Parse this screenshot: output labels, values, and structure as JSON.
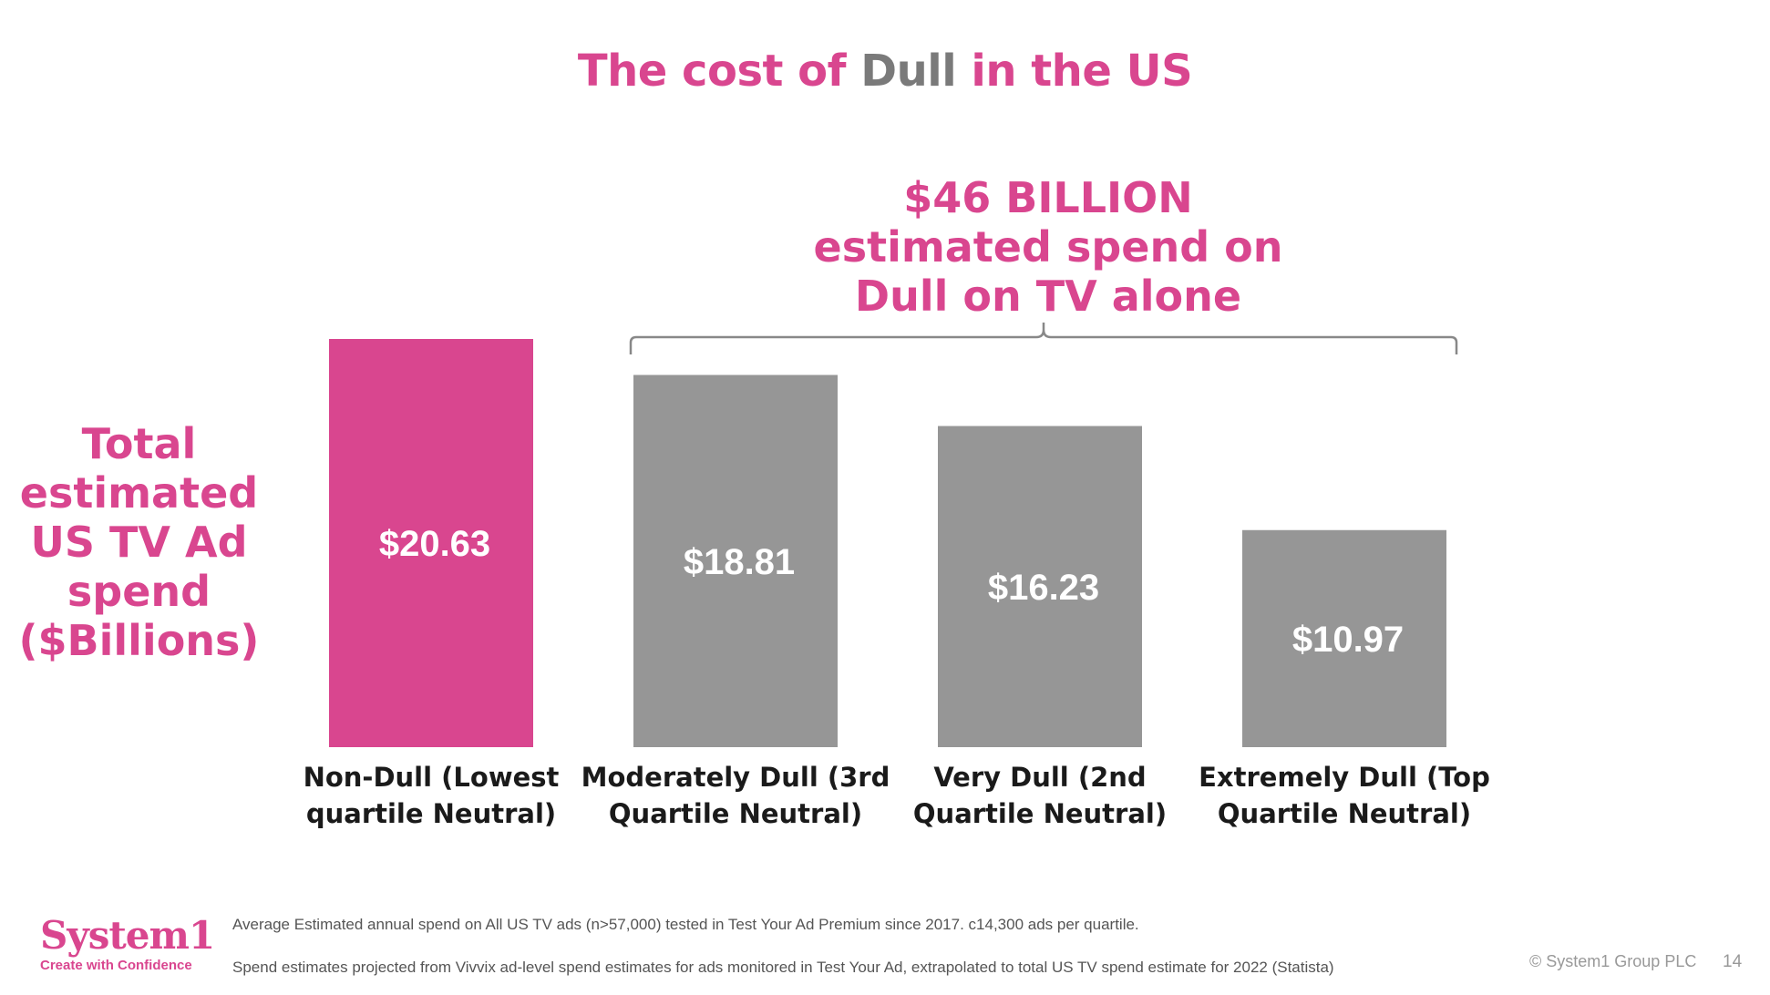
{
  "title": {
    "part1": "The cost of ",
    "part2": "Dull",
    "part3": " in the US"
  },
  "callout": {
    "line1": "$46 BILLION",
    "line2": "estimated spend on",
    "line3": "Dull on TV alone"
  },
  "y_axis_label": {
    "line1": "Total",
    "line2": "estimated",
    "line3": "US TV Ad",
    "line4": "spend",
    "line5": "($Billions)"
  },
  "colors": {
    "brand_pink": "#d9468f",
    "bar_grey": "#969696",
    "bracket_grey": "#888888"
  },
  "chart_data": {
    "type": "bar",
    "categories": [
      [
        "Non-Dull (Lowest",
        "quartile Neutral)"
      ],
      [
        "Moderately Dull (3rd",
        "Quartile Neutral)"
      ],
      [
        "Very Dull (2nd",
        "Quartile Neutral)"
      ],
      [
        "Extremely Dull (Top",
        "Quartile Neutral)"
      ]
    ],
    "values": [
      20.63,
      18.81,
      16.23,
      10.97
    ],
    "data_labels": [
      "$20.63",
      "$18.81",
      "$16.23",
      "$10.97"
    ],
    "bar_colors": [
      "#d9468f",
      "#969696",
      "#969696",
      "#969696"
    ],
    "ylabel": "Total estimated US TV Ad spend ($Billions)",
    "ylim": [
      0,
      20.63
    ],
    "grid": false,
    "annotation": "$46 BILLION estimated spend on Dull on TV alone"
  },
  "footer": {
    "note1": "Average Estimated annual spend on All US TV ads (n>57,000) tested in Test Your Ad Premium since 2017. c14,300 ads per quartile.",
    "note2": "Spend estimates projected from Vivvix ad-level spend estimates for ads monitored in Test Your Ad, extrapolated to total US TV spend estimate for 2022 (Statista)",
    "logo_text": "System1",
    "logo_tagline": "Create with Confidence",
    "copyright": "© System1 Group PLC",
    "page_number": "14"
  }
}
